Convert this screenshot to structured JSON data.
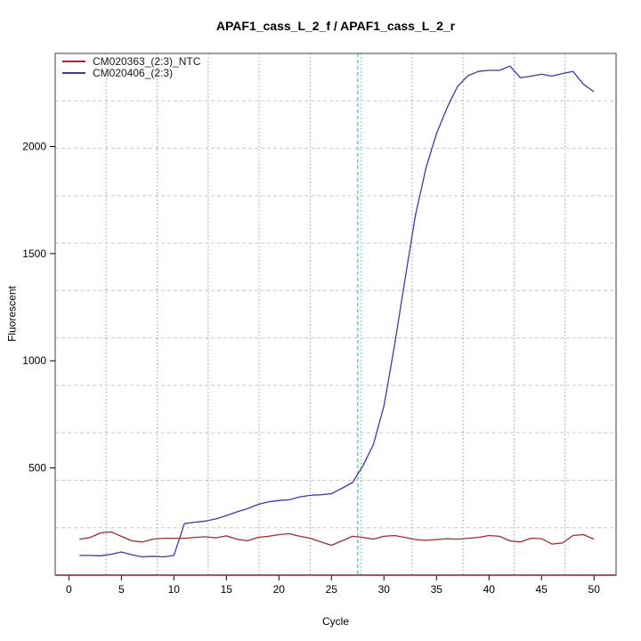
{
  "chart_data": {
    "type": "line",
    "title": "APAF1_cass_L_2_f / APAF1_cass_L_2_r",
    "xlabel": "Cycle",
    "ylabel": "Fluorescent",
    "xlim": [
      -1.3,
      52.1
    ],
    "ylim": [
      0,
      2434
    ],
    "x_ticks": [
      0,
      5,
      10,
      15,
      20,
      25,
      30,
      35,
      40,
      45,
      50
    ],
    "y_ticks": [
      500,
      1000,
      1500,
      2000
    ],
    "grid": {
      "on": true,
      "nx": 11,
      "ny": 11,
      "vertical_style": "dotted",
      "horizontal_style": "dashed",
      "vertical_color": "#9a9a9a",
      "horizontal_color": "#c9c9c9"
    },
    "legend_position": "top-left",
    "threshold_line": {
      "cycle": 27.5,
      "color": "#3fe3e3",
      "style": "dashed"
    },
    "baseline": {
      "value": 0,
      "color": "#8b2323"
    },
    "frame_color": "#3c3c3c",
    "x": [
      1,
      2,
      3,
      4,
      5,
      6,
      7,
      8,
      9,
      10,
      11,
      12,
      13,
      14,
      15,
      16,
      17,
      18,
      19,
      20,
      21,
      22,
      23,
      24,
      25,
      26,
      27,
      28,
      29,
      30,
      31,
      32,
      33,
      34,
      35,
      36,
      37,
      38,
      39,
      40,
      41,
      42,
      43,
      44,
      45,
      46,
      47,
      48,
      49,
      50
    ],
    "series": [
      {
        "name": "CM020363_(2:3)_NTC",
        "color": "#a02c2c",
        "values": [
          168,
          175,
          197,
          202,
          181,
          160,
          155,
          168,
          172,
          172,
          172,
          176,
          179,
          174,
          183,
          168,
          160,
          176,
          181,
          189,
          193,
          181,
          172,
          155,
          139,
          160,
          181,
          176,
          168,
          181,
          185,
          176,
          166,
          162,
          166,
          170,
          168,
          172,
          176,
          185,
          181,
          160,
          155,
          172,
          170,
          145,
          150,
          185,
          189,
          168
        ]
      },
      {
        "name": "CM020406_(2:3)",
        "color": "#3a3aab",
        "values": [
          92,
          92,
          90,
          97,
          108,
          95,
          85,
          88,
          85,
          92,
          240,
          247,
          252,
          262,
          278,
          295,
          310,
          330,
          342,
          348,
          352,
          365,
          372,
          375,
          380,
          405,
          432,
          510,
          610,
          790,
          1070,
          1380,
          1680,
          1900,
          2060,
          2180,
          2280,
          2330,
          2350,
          2355,
          2355,
          2375,
          2320,
          2328,
          2337,
          2328,
          2340,
          2350,
          2290,
          2255
        ]
      }
    ]
  }
}
